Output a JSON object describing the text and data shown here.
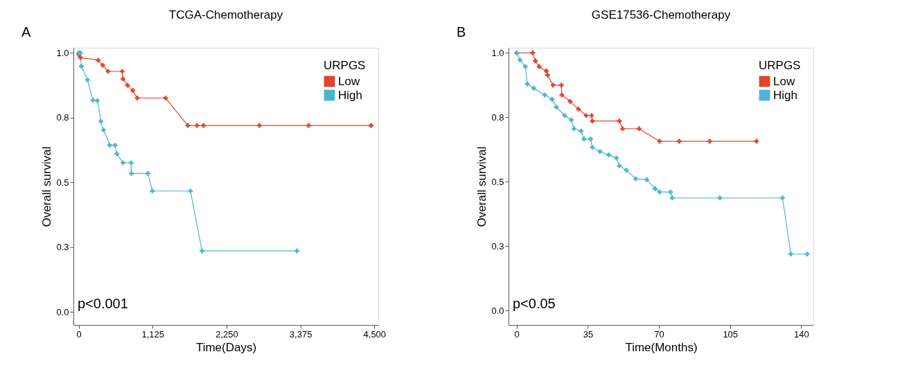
{
  "chart_data": [
    {
      "type": "line",
      "title": "TCGA-Chemotherapy",
      "xlabel": "Time(Days)",
      "ylabel": "Overall survival",
      "legend_title": "URPGS",
      "legend": "top right",
      "marker": "cross",
      "grid": false,
      "xlim": [
        -80,
        4560
      ],
      "xticks": [
        0,
        {
          "value": 1125,
          "label": "1,125"
        },
        {
          "value": 2250,
          "label": "2,250"
        },
        {
          "value": 3375,
          "label": "3,375"
        },
        {
          "value": 4500,
          "label": "4,500"
        }
      ],
      "ylim": [
        -0.05,
        1.02
      ],
      "yticks": [
        {
          "value": 0,
          "label": "0.0"
        },
        {
          "value": 0.25,
          "label": "0.3"
        },
        0.5,
        {
          "value": 0.75,
          "label": "0.8"
        },
        {
          "value": 1,
          "label": "1.0"
        }
      ],
      "series": [
        {
          "name": "Low",
          "color": "#e0452f",
          "x": [
            0,
            27,
            297,
            365,
            446,
            662,
            675,
            743,
            824,
            891,
            1323,
            1661,
            1800,
            1900,
            2750,
            3500,
            4450
          ],
          "values": [
            0.994,
            0.982,
            0.972,
            0.953,
            0.929,
            0.929,
            0.9,
            0.875,
            0.855,
            0.826,
            0.826,
            0.72,
            0.72,
            0.72,
            0.72,
            0.72,
            0.72
          ]
        },
        {
          "name": "High",
          "color": "#4bb4d0",
          "x": [
            0,
            27,
            40,
            135,
            216,
            284,
            338,
            378,
            473,
            554,
            581,
            675,
            797,
            802,
            1053,
            1121,
            1701,
            1877,
            3321
          ],
          "values": [
            1.0,
            1.0,
            0.949,
            0.896,
            0.818,
            0.816,
            0.736,
            0.703,
            0.644,
            0.644,
            0.611,
            0.576,
            0.576,
            0.535,
            0.535,
            0.467,
            0.467,
            0.236,
            0.236
          ]
        }
      ],
      "annotations": [
        "A",
        "p<0.001"
      ]
    },
    {
      "type": "line",
      "title": "GSE17536-Chemotherapy",
      "xlabel": "Time(Months)",
      "ylabel": "Overall survival",
      "legend_title": "URPGS",
      "legend": "top right",
      "marker": "cross",
      "grid": false,
      "xlim": [
        -4,
        146
      ],
      "xticks": [
        0,
        35,
        70,
        105,
        140
      ],
      "ylim": [
        -0.056,
        1.02
      ],
      "yticks": [
        {
          "value": 0,
          "label": "0.0"
        },
        {
          "value": 0.25,
          "label": "0.3"
        },
        0.5,
        {
          "value": 0.75,
          "label": "0.8"
        },
        {
          "value": 1,
          "label": "1.0"
        }
      ],
      "series": [
        {
          "name": "Low",
          "color": "#e0452f",
          "x": [
            0,
            7.9,
            9.2,
            11.1,
            14.6,
            15.2,
            17.9,
            22,
            22.2,
            26.3,
            30.4,
            34.2,
            36.9,
            37.2,
            50.5,
            52.1,
            60.2,
            70.3,
            80,
            95,
            118
          ],
          "values": [
            1.0,
            1.0,
            0.969,
            0.947,
            0.93,
            0.914,
            0.875,
            0.875,
            0.837,
            0.812,
            0.782,
            0.757,
            0.757,
            0.736,
            0.736,
            0.706,
            0.706,
            0.657,
            0.657,
            0.657,
            0.657
          ]
        },
        {
          "name": "High",
          "color": "#4bb4d0",
          "x": [
            0,
            1.6,
            4.3,
            5.2,
            8.4,
            13.8,
            17.4,
            19.5,
            23.6,
            26.9,
            28.2,
            31.7,
            33.1,
            36.4,
            37.2,
            41,
            45.3,
            49.1,
            50.5,
            54,
            58.6,
            64,
            68.1,
            70.3,
            75.7,
            76.5,
            100,
            130.8,
            134.9,
            143
          ],
          "values": [
            1.0,
            0.973,
            0.947,
            0.88,
            0.863,
            0.837,
            0.82,
            0.79,
            0.757,
            0.74,
            0.706,
            0.697,
            0.666,
            0.666,
            0.634,
            0.617,
            0.604,
            0.592,
            0.562,
            0.545,
            0.511,
            0.508,
            0.473,
            0.46,
            0.46,
            0.437,
            0.437,
            0.437,
            0.219,
            0.219
          ]
        }
      ],
      "annotations": [
        "B",
        "p<0.05"
      ]
    }
  ]
}
